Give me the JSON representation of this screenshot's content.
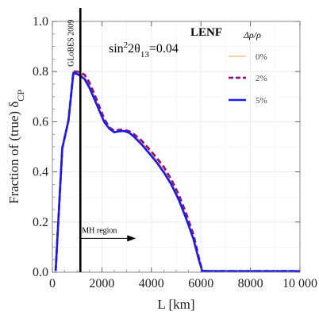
{
  "chart_data": {
    "type": "line",
    "xlabel": "L [km]",
    "ylabel_main": "Fraction of (true) δ",
    "ylabel_sub": "CP",
    "xlim": [
      0,
      10000
    ],
    "ylim": [
      0,
      1.0
    ],
    "xticks": [
      0,
      2000,
      4000,
      6000,
      8000,
      10000
    ],
    "xtick_labels": [
      "0",
      "2000",
      "4000",
      "6000",
      "8000",
      "10 000"
    ],
    "yticks": [
      0,
      0.2,
      0.4,
      0.6,
      0.8,
      1.0
    ],
    "ytick_labels": [
      "0.0",
      "0.2",
      "0.4",
      "0.6",
      "0.8",
      "1.0"
    ],
    "grid": true,
    "legend_title": "Δρ/ρ",
    "legend_placement": "top-right",
    "annotations": {
      "experiment": "LENF",
      "theta_text": "sin²2θ₁₃=0.04",
      "theta_prefix": "sin",
      "theta_sup": "2",
      "theta_mid": "2θ",
      "theta_sub": "13",
      "theta_suffix": "=0.04",
      "vertical_line_label": "GLoBES 2009",
      "vertical_line_x": 1130,
      "region_label": "MH region"
    },
    "series": [
      {
        "name": "0%",
        "color": "#f5b070",
        "style": "solid",
        "x": [
          130,
          400,
          650,
          850,
          1000,
          1130,
          1300,
          1500,
          1700,
          1900,
          2100,
          2300,
          2500,
          2700,
          2900,
          3100,
          3300,
          3600,
          3900,
          4200,
          4500,
          4800,
          5100,
          5400,
          5700,
          5900,
          6050,
          6500,
          7000,
          8000,
          9000,
          10000
        ],
        "y": [
          0.005,
          0.495,
          0.605,
          0.8,
          0.795,
          0.79,
          0.78,
          0.745,
          0.7,
          0.65,
          0.6,
          0.573,
          0.56,
          0.565,
          0.566,
          0.56,
          0.545,
          0.52,
          0.485,
          0.45,
          0.41,
          0.36,
          0.3,
          0.225,
          0.14,
          0.06,
          0.005,
          0.004,
          0.004,
          0.004,
          0.004,
          0.004
        ]
      },
      {
        "name": "2%",
        "color": "#8a1a7a",
        "style": "dashed",
        "x": [
          130,
          400,
          650,
          850,
          1000,
          1130,
          1300,
          1500,
          1700,
          1900,
          2100,
          2300,
          2500,
          2700,
          2900,
          3100,
          3300,
          3600,
          3900,
          4200,
          4500,
          4800,
          5100,
          5400,
          5700,
          5900,
          6050,
          6500,
          7000,
          8000,
          9000,
          10000
        ],
        "y": [
          0.005,
          0.495,
          0.605,
          0.8,
          0.8,
          0.795,
          0.788,
          0.755,
          0.71,
          0.66,
          0.61,
          0.578,
          0.563,
          0.568,
          0.568,
          0.562,
          0.55,
          0.525,
          0.492,
          0.458,
          0.42,
          0.37,
          0.31,
          0.235,
          0.15,
          0.065,
          0.005,
          0.004,
          0.004,
          0.004,
          0.004,
          0.004
        ]
      },
      {
        "name": "5%",
        "color": "#1a1aee",
        "style": "solid",
        "x": [
          130,
          400,
          650,
          850,
          1000,
          1130,
          1300,
          1500,
          1700,
          1900,
          2100,
          2300,
          2500,
          2700,
          2900,
          3100,
          3300,
          3600,
          3900,
          4200,
          4500,
          4800,
          5100,
          5400,
          5700,
          5900,
          6050,
          6500,
          7000,
          8000,
          9000,
          10000
        ],
        "y": [
          0.005,
          0.495,
          0.605,
          0.795,
          0.79,
          0.783,
          0.77,
          0.735,
          0.69,
          0.643,
          0.598,
          0.572,
          0.558,
          0.562,
          0.563,
          0.556,
          0.54,
          0.51,
          0.475,
          0.44,
          0.398,
          0.35,
          0.29,
          0.215,
          0.132,
          0.055,
          0.005,
          0.004,
          0.004,
          0.004,
          0.004,
          0.004
        ]
      }
    ]
  }
}
